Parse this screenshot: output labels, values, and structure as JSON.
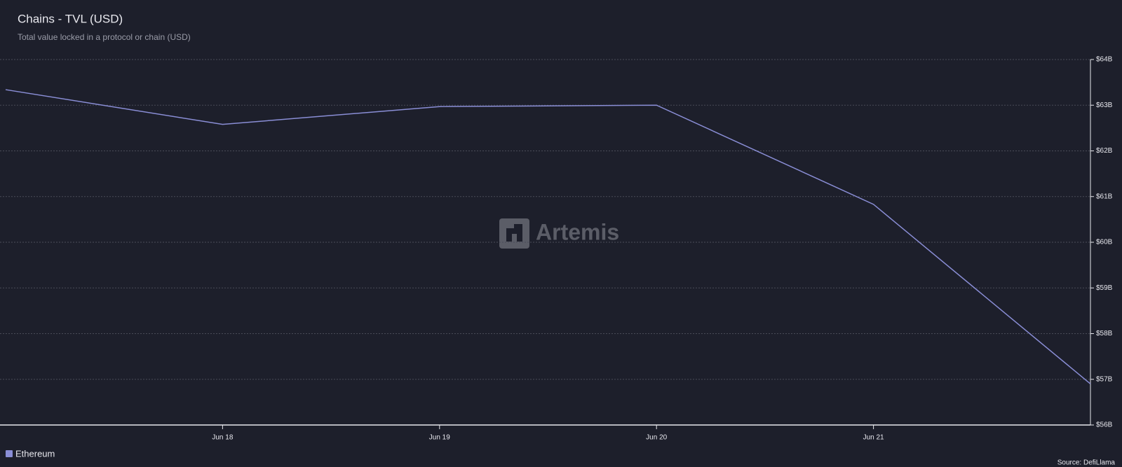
{
  "chart_data": {
    "type": "line",
    "title": "Chains - TVL (USD)",
    "subtitle": "Total value locked in a protocol or chain (USD)",
    "categories": [
      null,
      "Jun 18",
      "Jun 19",
      "Jun 20",
      "Jun 21",
      null
    ],
    "series": [
      {
        "name": "Ethereum",
        "color": "#8a8ed6",
        "values": [
          63.34,
          62.58,
          62.97,
          63.0,
          60.83,
          56.9
        ]
      }
    ],
    "ylim": [
      56,
      64
    ],
    "yticks": [
      {
        "value": 56,
        "label": "$56B"
      },
      {
        "value": 57,
        "label": "$57B"
      },
      {
        "value": 58,
        "label": "$58B"
      },
      {
        "value": 59,
        "label": "$59B"
      },
      {
        "value": 60,
        "label": "$60B"
      },
      {
        "value": 61,
        "label": "$61B"
      },
      {
        "value": 62,
        "label": "$62B"
      },
      {
        "value": 63,
        "label": "$63B"
      },
      {
        "value": 64,
        "label": "$64B"
      }
    ],
    "grid": true,
    "legend": "bottom-left",
    "watermark": "Artemis",
    "source": "Source: DefiLlama"
  }
}
